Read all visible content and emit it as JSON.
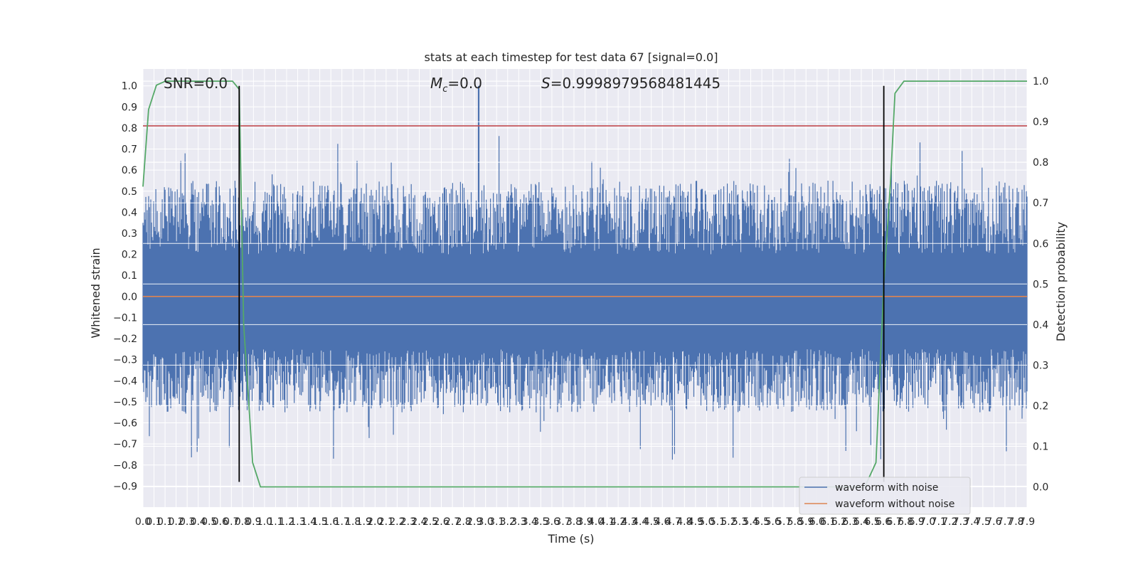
{
  "chart_data": {
    "type": "line",
    "title": "stats at each timestep for test data 67 [signal=0.0]",
    "xlabel": "Time (s)",
    "ylabel_left": "Whitened strain",
    "ylabel_right": "Detection probability",
    "xlim": [
      0.0,
      7.9
    ],
    "ylim_left": [
      -1.0,
      1.08
    ],
    "ylim_right": [
      -0.05,
      1.03
    ],
    "grid": true,
    "legend_placement": "lower-right",
    "x_tick_labels": [
      "0.0",
      "0.1",
      "0.1",
      "0.2",
      "0.3",
      "0.4",
      "0.5",
      "0.6",
      "0.7",
      "0.8",
      "0.9",
      "1.0",
      "1.1",
      "1.2",
      "1.3",
      "1.4",
      "1.5",
      "1.6",
      "1.7",
      "1.8",
      "1.9",
      "2.0",
      "2.1",
      "2.2",
      "2.3",
      "2.4",
      "2.5",
      "2.6",
      "2.7",
      "2.8",
      "2.9",
      "3.0",
      "3.1",
      "3.2",
      "3.3",
      "3.4",
      "3.5",
      "3.6",
      "3.7",
      "3.8",
      "3.9",
      "4.0",
      "4.1",
      "4.2",
      "4.3",
      "4.4",
      "4.5",
      "4.6",
      "4.7",
      "4.8",
      "4.9",
      "5.0",
      "5.1",
      "5.2",
      "5.3",
      "5.4",
      "5.5",
      "5.6",
      "5.7",
      "5.8",
      "5.9",
      "6.0",
      "6.1",
      "6.2",
      "6.3",
      "6.4",
      "6.5",
      "6.6",
      "6.7",
      "6.8",
      "6.9",
      "7.0",
      "7.1",
      "7.2",
      "7.3",
      "7.4",
      "7.5",
      "7.6",
      "7.7",
      "7.8",
      "7.9"
    ],
    "y_left_ticks": [
      "1.0",
      "0.9",
      "0.8",
      "0.7",
      "0.6",
      "0.5",
      "0.4",
      "0.3",
      "0.2",
      "0.1",
      "0.0",
      "-0.1",
      "-0.2",
      "-0.3",
      "-0.4",
      "-0.5",
      "-0.6",
      "-0.7",
      "-0.8",
      "-0.9"
    ],
    "y_right_ticks": [
      "1.0",
      "0.9",
      "0.8",
      "0.7",
      "0.6",
      "0.5",
      "0.4",
      "0.3",
      "0.2",
      "0.1",
      "0.0"
    ],
    "annotations": {
      "snr": "SNR=0.0",
      "mc": "=0.0",
      "mc_symbol": "M",
      "mc_sub": "c",
      "s_symbol": "S",
      "s": "=0.9998979568481445"
    },
    "series": [
      {
        "name": "waveform with noise",
        "color": "#4c72b0",
        "style": "noise",
        "envelope_pos": [
          0.2,
          0.55
        ],
        "envelope_neg": [
          -0.25,
          -0.55
        ],
        "peak": 1.0
      },
      {
        "name": "waveform without noise",
        "color": "#dd8452",
        "values_constant": 0.0
      }
    ],
    "threshold_line": {
      "value": 0.81,
      "color": "#c44e52"
    },
    "vertical_lines": {
      "x": [
        0.86,
        6.62
      ],
      "color": "#000000",
      "ymin": -0.88,
      "ymax": 1.0
    },
    "detection_probability": {
      "color": "#55a868",
      "x": [
        0.0,
        0.05,
        0.12,
        0.2,
        0.3,
        0.5,
        0.8,
        0.86,
        0.9,
        0.98,
        1.05,
        1.2,
        3.0,
        6.0,
        6.45,
        6.55,
        6.62,
        6.68,
        6.72,
        6.8,
        6.9,
        7.2,
        7.9
      ],
      "y": [
        0.74,
        0.93,
        0.99,
        1.0,
        1.0,
        1.0,
        1.0,
        0.98,
        0.4,
        0.06,
        0.0,
        0.0,
        0.0,
        0.0,
        0.0,
        0.06,
        0.5,
        0.75,
        0.97,
        1.0,
        1.0,
        1.0,
        1.0
      ]
    }
  }
}
